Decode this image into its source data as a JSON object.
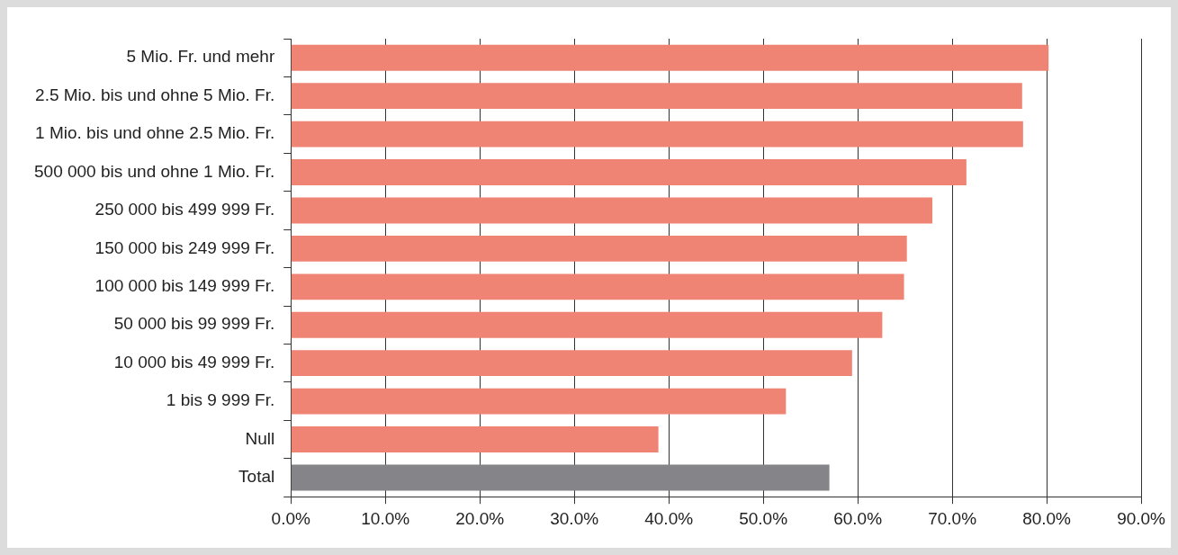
{
  "chart_data": {
    "type": "bar",
    "orientation": "horizontal",
    "categories": [
      "5 Mio. Fr. und mehr",
      "2.5 Mio. bis und ohne 5 Mio. Fr.",
      "1 Mio. bis und ohne 2.5 Mio. Fr.",
      "500 000 bis und ohne 1 Mio. Fr.",
      "250 000 bis 499 999 Fr.",
      "150 000 bis 249 999 Fr.",
      "100 000 bis 149 999 Fr.",
      "50 000 bis 99 999 Fr.",
      "10 000 bis 49 999 Fr.",
      "1 bis 9 999 Fr.",
      "Null",
      "Total"
    ],
    "values": [
      80.2,
      77.4,
      77.5,
      71.5,
      67.9,
      65.2,
      64.9,
      62.6,
      59.4,
      52.4,
      38.9,
      57.0
    ],
    "colors": [
      "#ef8374",
      "#ef8374",
      "#ef8374",
      "#ef8374",
      "#ef8374",
      "#ef8374",
      "#ef8374",
      "#ef8374",
      "#ef8374",
      "#ef8374",
      "#ef8374",
      "#858589"
    ],
    "xlim": [
      0,
      90
    ],
    "xticks": [
      {
        "value": 0,
        "label": "0.0%"
      },
      {
        "value": 10,
        "label": "10.0%"
      },
      {
        "value": 20,
        "label": "20.0%"
      },
      {
        "value": 30,
        "label": "30.0%"
      },
      {
        "value": 40,
        "label": "40.0%"
      },
      {
        "value": 50,
        "label": "50.0%"
      },
      {
        "value": 60,
        "label": "60.0%"
      },
      {
        "value": 70,
        "label": "70.0%"
      },
      {
        "value": 80,
        "label": "80.0%"
      },
      {
        "value": 90,
        "label": "90.0%"
      }
    ],
    "grid": "x",
    "legend": false
  }
}
